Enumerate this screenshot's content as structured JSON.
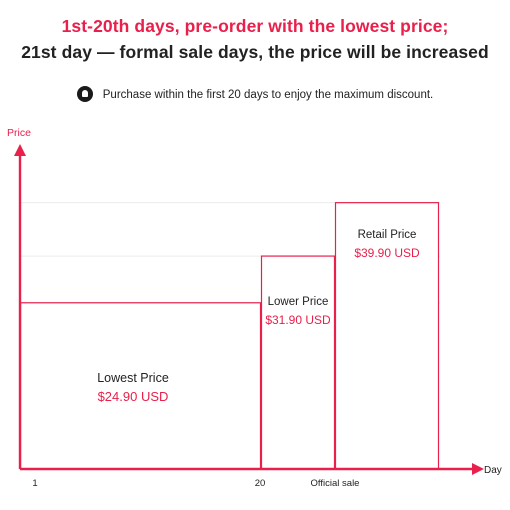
{
  "header": {
    "line1": "1st-20th days, pre-order with the lowest price;",
    "line2": "21st day — formal sale days, the price will be increased",
    "line1_color": "#e8204b",
    "line2_color": "#222222"
  },
  "note": {
    "icon": "bell-icon",
    "text": "Purchase within the first 20 days to enjoy the maximum discount."
  },
  "chart_data": {
    "type": "bar",
    "categories": [
      "Lowest Price",
      "Lower Price",
      "Retail Price"
    ],
    "values": [
      24.9,
      31.9,
      39.9
    ],
    "value_labels": [
      "$24.90 USD",
      "$31.90 USD",
      "$39.90 USD"
    ],
    "x_ticks": [
      "1",
      "20",
      "Official sale"
    ],
    "xlabel": "Day",
    "ylabel": "Price",
    "ylim": [
      0,
      40
    ],
    "grid": true,
    "accent_color": "#e8204b"
  }
}
